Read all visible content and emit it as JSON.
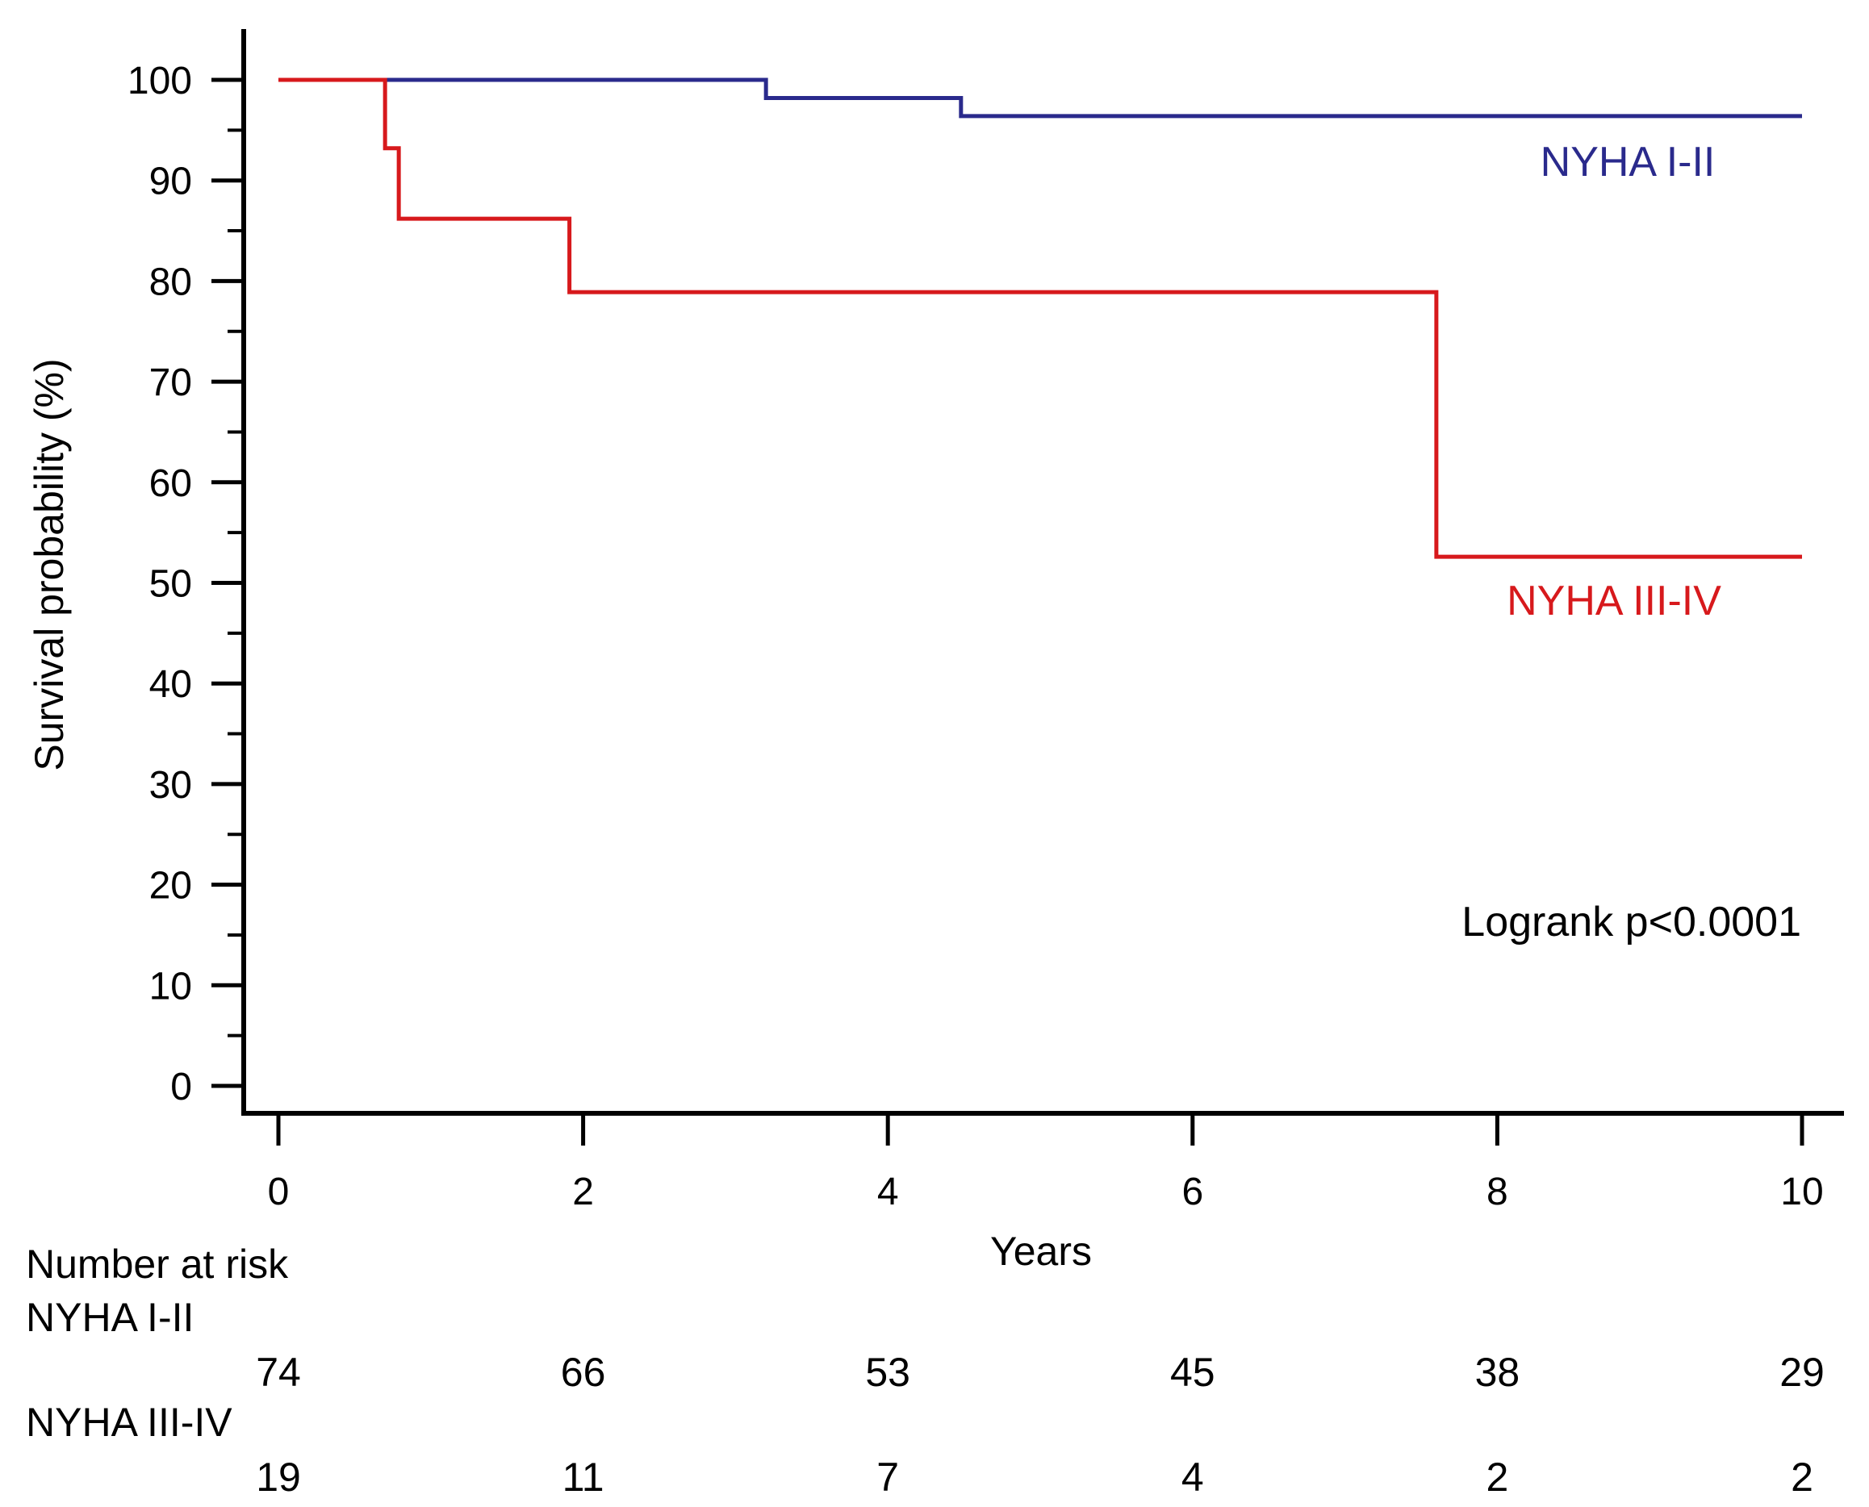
{
  "chart_data": {
    "type": "line",
    "step": "post",
    "xlabel": "Years",
    "ylabel": "Survival probability (%)",
    "xlim": [
      0,
      10
    ],
    "ylim": [
      0,
      100
    ],
    "x_ticks": [
      0,
      2,
      4,
      6,
      8,
      10
    ],
    "y_ticks": [
      0,
      10,
      20,
      30,
      40,
      50,
      60,
      70,
      80,
      90,
      100
    ],
    "grid": false,
    "series": [
      {
        "name": "NYHA I-II",
        "color": "#2a2a8c",
        "x": [
          0,
          3.2,
          4.48,
          10
        ],
        "y": [
          100,
          98.2,
          96.4,
          96.4
        ]
      },
      {
        "name": "NYHA III-IV",
        "color": "#d7191c",
        "x": [
          0,
          0.7,
          0.79,
          1.91,
          7.6,
          10
        ],
        "y": [
          100,
          93.2,
          86.2,
          78.9,
          52.6,
          52.6
        ]
      }
    ],
    "annotation": "Logrank p<0.0001",
    "risk_table": {
      "title": "Number at risk",
      "rows": [
        {
          "label": "NYHA I-II",
          "values": [
            "74",
            "66",
            "53",
            "45",
            "38",
            "29"
          ]
        },
        {
          "label": "NYHA III-IV",
          "values": [
            "19",
            "11",
            "7",
            "4",
            "2",
            "2"
          ]
        }
      ]
    }
  }
}
